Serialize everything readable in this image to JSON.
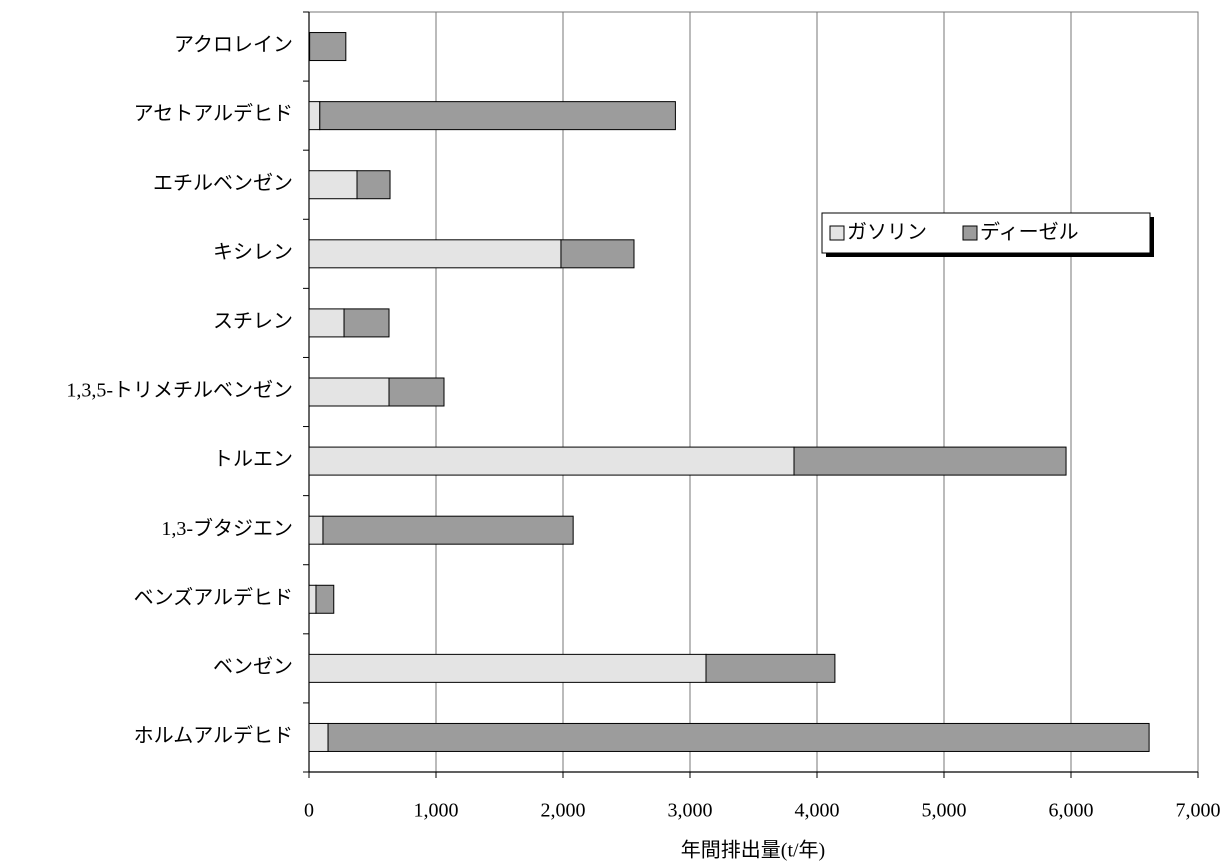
{
  "chart_data": {
    "type": "stacked-barh",
    "xlabel": "年間排出量(t/年)",
    "categories": [
      "アクロレイン",
      "アセトアルデヒド",
      "エチルベンゼン",
      "キシレン",
      "スチレン",
      "1,3,5-トリメチルベンゼン",
      "トルエン",
      "1,3-ブタジエン",
      "ベンズアルデヒド",
      "ベンゼン",
      "ホルムアルデヒド"
    ],
    "series": [
      {
        "name": "ガソリン",
        "color": "#e4e4e4",
        "values": [
          5,
          85,
          378,
          1984,
          276,
          630,
          3819,
          110,
          55,
          3126,
          150
        ]
      },
      {
        "name": "ディーゼル",
        "color": "#9c9c9c",
        "values": [
          285,
          2800,
          260,
          575,
          354,
          433,
          2142,
          1970,
          140,
          1015,
          6465
        ]
      }
    ],
    "xlim": [
      0,
      7000
    ],
    "xticks": [
      0,
      {
        "value": 1000,
        "label": "1,000"
      },
      {
        "value": 2000,
        "label": "2,000"
      },
      {
        "value": 3000,
        "label": "3,000"
      },
      {
        "value": 4000,
        "label": "4,000"
      },
      {
        "value": 5000,
        "label": "5,000"
      },
      {
        "value": 6000,
        "label": "6,000"
      },
      {
        "value": 7000,
        "label": "7,000"
      }
    ],
    "grid": true
  }
}
